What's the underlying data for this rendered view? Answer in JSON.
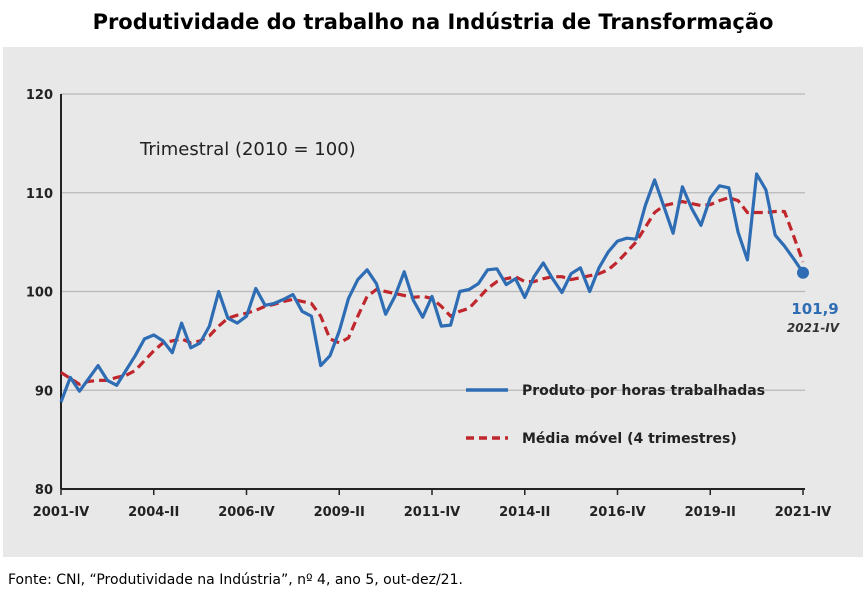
{
  "title": "Produtividade do trabalho na Indústria de Transformação",
  "source": "Fonte: CNI, “Produtividade na Indústria”, nº 4, ano 5, out-dez/21.",
  "chart_data": {
    "type": "line",
    "note": "Trimestral (2010 = 100)",
    "ylim": [
      80,
      120
    ],
    "yticks": [
      "80",
      "90",
      "100",
      "110",
      "120"
    ],
    "xticks": [
      {
        "label": "2001-IV",
        "index": 0
      },
      {
        "label": "2004-II",
        "index": 10
      },
      {
        "label": "2006-IV",
        "index": 20
      },
      {
        "label": "2009-II",
        "index": 30
      },
      {
        "label": "2011-IV",
        "index": 40
      },
      {
        "label": "2014-II",
        "index": 50
      },
      {
        "label": "2016-IV",
        "index": 60
      },
      {
        "label": "2019-II",
        "index": 70
      },
      {
        "label": "2021-IV",
        "index": 80
      }
    ],
    "grid": true,
    "legend_position": "bottom-right",
    "series": [
      {
        "name": "Produto por horas trabalhadas",
        "color": "#2e6db4",
        "style": "solid",
        "values": [
          88.8,
          91.3,
          89.9,
          91.2,
          92.5,
          91.0,
          90.5,
          92.0,
          93.5,
          95.2,
          95.6,
          95.0,
          93.8,
          96.8,
          94.3,
          94.8,
          96.5,
          100.0,
          97.3,
          96.8,
          97.5,
          100.3,
          98.6,
          98.8,
          99.2,
          99.7,
          98.0,
          97.5,
          92.5,
          93.5,
          96.0,
          99.3,
          101.2,
          102.2,
          100.8,
          97.7,
          99.5,
          102.0,
          99.1,
          97.4,
          99.5,
          96.5,
          96.6,
          100.0,
          100.2,
          100.8,
          102.2,
          102.3,
          100.7,
          101.3,
          99.4,
          101.5,
          102.9,
          101.3,
          99.9,
          101.8,
          102.4,
          100.0,
          102.4,
          104.0,
          105.1,
          105.4,
          105.3,
          108.7,
          111.3,
          108.6,
          105.9,
          110.6,
          108.4,
          106.7,
          109.5,
          110.7,
          110.5,
          106.0,
          103.2,
          111.9,
          110.3,
          105.7,
          104.6,
          103.3,
          101.9
        ]
      },
      {
        "name": "Média móvel (4 trimestres)",
        "color": "#c0272d",
        "style": "dashed",
        "values": [
          91.8,
          91.2,
          90.6,
          90.9,
          91.0,
          91.0,
          91.3,
          91.5,
          92.0,
          93.0,
          94.0,
          94.8,
          95.0,
          95.2,
          94.8,
          95.0,
          95.5,
          96.5,
          97.3,
          97.6,
          97.8,
          98.1,
          98.5,
          98.7,
          99.0,
          99.2,
          99.0,
          98.8,
          97.5,
          95.2,
          94.8,
          95.3,
          97.5,
          99.5,
          100.2,
          100.0,
          99.8,
          99.6,
          99.4,
          99.5,
          99.3,
          98.5,
          97.5,
          98.0,
          98.3,
          99.3,
          100.3,
          101.0,
          101.3,
          101.5,
          101.0,
          101.0,
          101.3,
          101.5,
          101.5,
          101.2,
          101.4,
          101.6,
          101.8,
          102.2,
          103.0,
          104.0,
          105.0,
          106.5,
          108.0,
          108.7,
          108.9,
          109.1,
          108.9,
          108.7,
          108.8,
          109.2,
          109.5,
          109.2,
          108.0,
          108.0,
          108.0,
          108.1,
          108.1,
          105.6,
          103.0
        ]
      }
    ],
    "last_point": {
      "value_label": "101,9",
      "period_label": "2021-IV"
    }
  }
}
